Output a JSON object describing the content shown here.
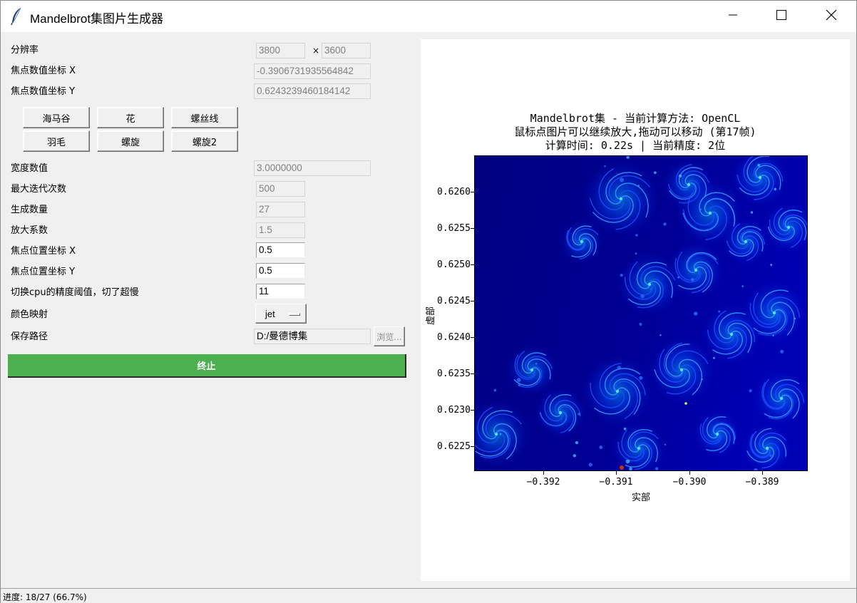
{
  "window": {
    "title": "Mandelbrot集图片生成器",
    "icon": "feather-icon"
  },
  "form": {
    "resolution_label": "分辨率",
    "resolution_width": "3800",
    "resolution_times": "×",
    "resolution_height": "3600",
    "focus_x_label": "焦点数值坐标 X",
    "focus_x_value": "-0.3906731935564842",
    "focus_y_label": "焦点数值坐标 Y",
    "focus_y_value": "0.6243239460184142",
    "presets": [
      "海马谷",
      "花",
      "螺丝线",
      "羽毛",
      "螺旋",
      "螺旋2"
    ],
    "width_label": "宽度数值",
    "width_value": "3.0000000",
    "max_iter_label": "最大迭代次数",
    "max_iter_value": "500",
    "count_label": "生成数量",
    "count_value": "27",
    "zoom_label": "放大系数",
    "zoom_value": "1.5",
    "pos_x_label": "焦点位置坐标 X",
    "pos_x_value": "0.5",
    "pos_y_label": "焦点位置坐标 Y",
    "pos_y_value": "0.5",
    "cpu_threshold_label": "切换cpu的精度阈值，切了超慢",
    "cpu_threshold_value": "11",
    "colormap_label": "颜色映射",
    "colormap_value": "jet",
    "save_path_label": "保存路径",
    "save_path_value": "D:/曼德博集",
    "browse_label": "浏览...",
    "stop_label": "终止"
  },
  "plot": {
    "title_line1": "Mandelbrot集 - 当前计算方法: OpenCL",
    "title_line2": "鼠标点图片可以继续放大,拖动可以移动 (第17帧)",
    "title_line3": "计算时间: 0.22s | 当前精度: 2位",
    "xlabel": "实部",
    "ylabel": "虚部",
    "yticks": [
      "0.6260",
      "0.6255",
      "0.6250",
      "0.6245",
      "0.6240",
      "0.6235",
      "0.6230",
      "0.6225"
    ],
    "xticks": [
      "−0.392",
      "−0.391",
      "−0.390",
      "−0.389"
    ],
    "colormap": "jet"
  },
  "status": {
    "text": "进度: 18/27 (66.7%)",
    "progress": 0.667
  }
}
